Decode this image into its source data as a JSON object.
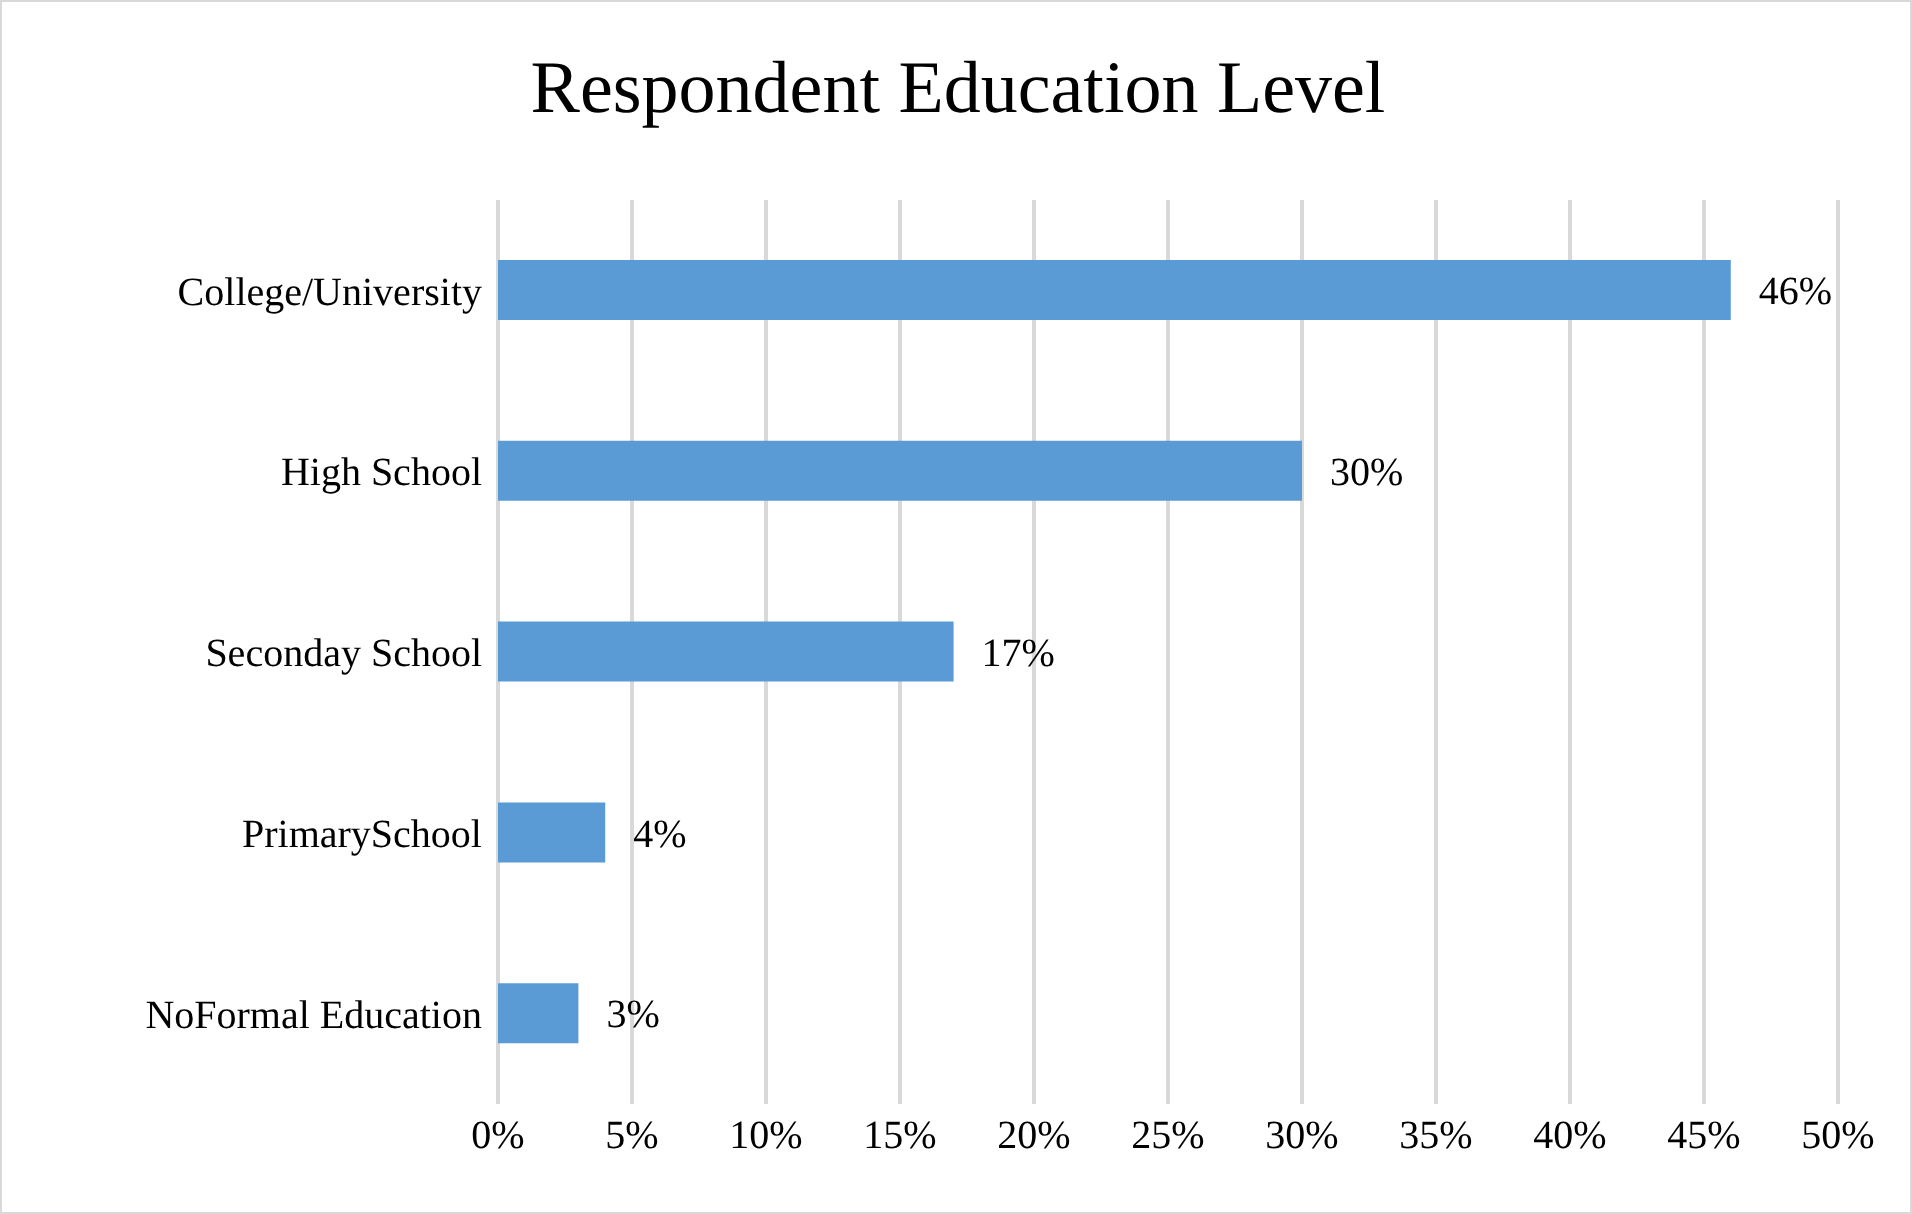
{
  "chart_data": {
    "type": "bar",
    "orientation": "horizontal",
    "title": "Respondent Education Level",
    "categories": [
      "College/University",
      "High School",
      "Seconday  School",
      "PrimarySchool",
      "NoFormal Education"
    ],
    "values": [
      46,
      30,
      17,
      4,
      3
    ],
    "value_labels": [
      "46%",
      "30%",
      "17%",
      "4%",
      "3%"
    ],
    "color": "#5b9bd5",
    "xlim": [
      0,
      50
    ],
    "xticks": [
      {
        "value": 0,
        "label": "0%"
      },
      {
        "value": 5,
        "label": "5%"
      },
      {
        "value": 10,
        "label": "10%"
      },
      {
        "value": 15,
        "label": "15%"
      },
      {
        "value": 20,
        "label": "20%"
      },
      {
        "value": 25,
        "label": "25%"
      },
      {
        "value": 30,
        "label": "30%"
      },
      {
        "value": 35,
        "label": "35%"
      },
      {
        "value": 40,
        "label": "40%"
      },
      {
        "value": 45,
        "label": "45%"
      },
      {
        "value": 50,
        "label": "50%"
      }
    ],
    "grid": "x"
  }
}
